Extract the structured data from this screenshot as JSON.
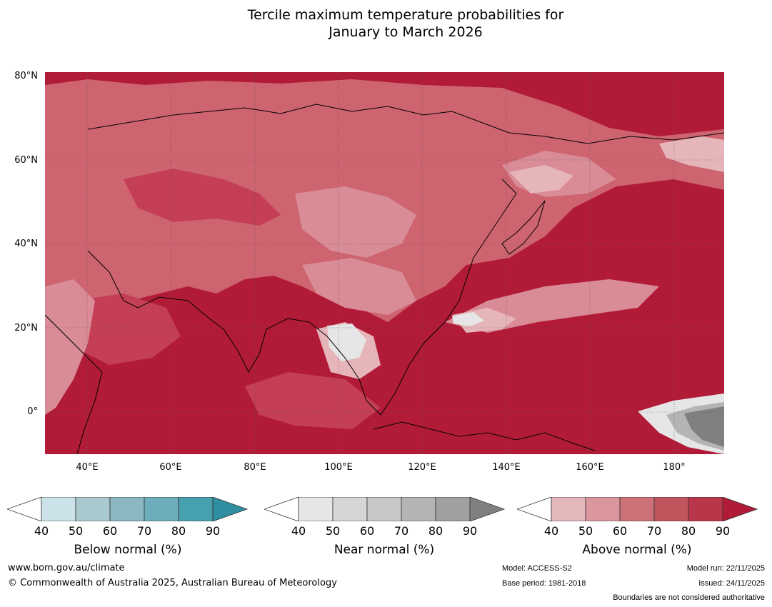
{
  "title": {
    "line1": "Tercile maximum temperature probabilities for",
    "line2": "January to March 2026"
  },
  "map": {
    "lat_labels": [
      "80°N",
      "60°N",
      "40°N",
      "20°N",
      "0°"
    ],
    "lon_labels": [
      "40°E",
      "60°E",
      "80°E",
      "100°E",
      "120°E",
      "140°E",
      "160°E",
      "180°"
    ],
    "lat_range": [
      -10,
      81
    ],
    "lon_range": [
      30,
      192
    ],
    "colors": {
      "above_90": "#b21b38",
      "above_80": "#c43e55",
      "above_70": "#cd6470",
      "above_60": "#d98b96",
      "above_50": "#e6b5ba",
      "near_90": "#808080",
      "near_70": "#b4b4b4",
      "near_40": "#e6e6e6",
      "coast": "#000000",
      "border": "#808080"
    }
  },
  "colorbars": [
    {
      "label": "Below normal (%)",
      "ticks": [
        "40",
        "50",
        "60",
        "70",
        "80",
        "90"
      ],
      "colors": [
        "#ffffff",
        "#cbe2e8",
        "#a9c9cf",
        "#8ab8c2",
        "#6eadbb",
        "#46a0b0",
        "#2f8ea0"
      ]
    },
    {
      "label": "Near normal (%)",
      "ticks": [
        "40",
        "50",
        "60",
        "70",
        "80",
        "90"
      ],
      "colors": [
        "#ffffff",
        "#e6e6e6",
        "#d6d6d6",
        "#c8c8c8",
        "#b4b4b4",
        "#a0a0a0",
        "#808080"
      ]
    },
    {
      "label": "Above normal (%)",
      "ticks": [
        "40",
        "50",
        "60",
        "70",
        "80",
        "90"
      ],
      "colors": [
        "#ffffff",
        "#e4b7bb",
        "#d9969c",
        "#cc7178",
        "#c2545e",
        "#b9354a",
        "#b21b38"
      ]
    }
  ],
  "footer": {
    "website": "www.bom.gov.au/climate",
    "copyright": "© Commonwealth of Australia 2025, Australian Bureau of Meteorology",
    "model": "Model: ACCESS-S2",
    "base_period": "Base period: 1981-2018",
    "model_run": "Model run: 22/11/2025",
    "issued": "Issued: 24/11/2025",
    "disclaimer": "Boundaries are not considered authoritative"
  }
}
